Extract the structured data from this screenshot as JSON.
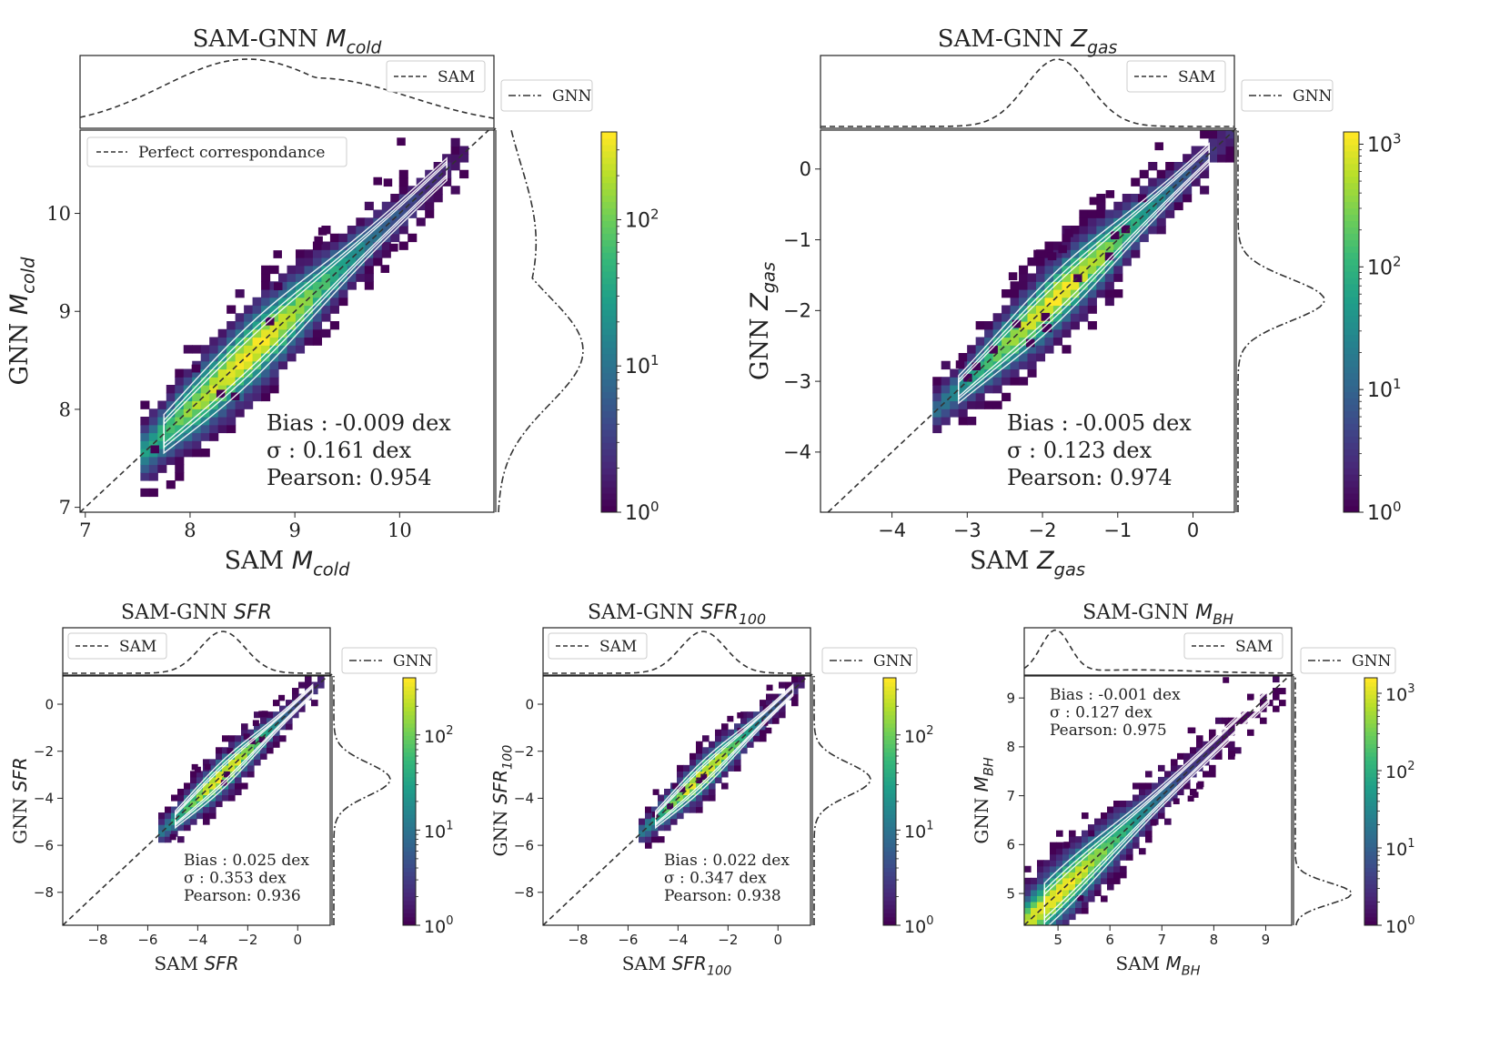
{
  "chart_data": [
    {
      "type": "heatmap",
      "id": "mcold",
      "title": "SAM-GNN M_cold",
      "title_base": "SAM-GNN ",
      "title_sym": "M",
      "title_sub": "cold",
      "xlabel_base": "SAM ",
      "xlabel_sym": "M",
      "xlabel_sub": "cold",
      "ylabel_base": "GNN ",
      "ylabel_sym": "M",
      "ylabel_sub": "cold",
      "xlim": [
        6.95,
        10.9
      ],
      "ylim": [
        6.95,
        10.85
      ],
      "xticks": [
        7,
        8,
        9,
        10
      ],
      "yticks": [
        7,
        8,
        9,
        10
      ],
      "diag_legend": "Perfect correspondance",
      "top_legend": "SAM",
      "right_legend": "GNN",
      "colorbar_ticks": [
        "10^0",
        "10^1",
        "10^2"
      ],
      "colorbar_max_decades": 2.6,
      "stats": [
        "Bias : -0.009 dex",
        "σ : 0.161 dex",
        "Pearson:  0.954"
      ],
      "ridge": {
        "x0": 7.6,
        "x1": 10.6
      },
      "marginal_peak": 8.55,
      "marginal_peak_right": 8.6
    },
    {
      "type": "heatmap",
      "id": "zgas",
      "title": "SAM-GNN Z_gas",
      "title_base": "SAM-GNN ",
      "title_sym": "Z",
      "title_sub": "gas",
      "xlabel_base": "SAM ",
      "xlabel_sym": "Z",
      "xlabel_sub": "gas",
      "ylabel_base": "GNN ",
      "ylabel_sym": "Z",
      "ylabel_sub": "gas",
      "xlim": [
        -4.95,
        0.55
      ],
      "ylim": [
        -4.85,
        0.55
      ],
      "xticks": [
        -4,
        -3,
        -2,
        -1,
        0
      ],
      "yticks": [
        -4,
        -3,
        -2,
        -1,
        0
      ],
      "diag_legend": "",
      "top_legend": "SAM",
      "right_legend": "GNN",
      "colorbar_ticks": [
        "10^0",
        "10^1",
        "10^2",
        "10^3"
      ],
      "colorbar_max_decades": 3.1,
      "stats": [
        "Bias : -0.005 dex",
        "σ : 0.123 dex",
        "Pearson:  0.974"
      ],
      "ridge": {
        "x0": -3.3,
        "x1": 0.4
      },
      "marginal_peak": -1.8,
      "marginal_peak_right": -1.85
    },
    {
      "type": "heatmap",
      "id": "sfr",
      "title": "SAM-GNN SFR",
      "title_base": "SAM-GNN ",
      "title_sym": "SFR",
      "title_sub": "",
      "xlabel_base": "SAM ",
      "xlabel_sym": "SFR",
      "xlabel_sub": "",
      "ylabel_base": "GNN ",
      "ylabel_sym": "SFR",
      "ylabel_sub": "",
      "xlim": [
        -9.4,
        1.3
      ],
      "ylim": [
        -9.4,
        1.2
      ],
      "xticks": [
        -8,
        -6,
        -4,
        -2,
        0
      ],
      "yticks": [
        -8,
        -6,
        -4,
        -2,
        0
      ],
      "diag_legend": "",
      "top_legend": "SAM",
      "right_legend": "GNN",
      "colorbar_ticks": [
        "10^0",
        "10^1",
        "10^2"
      ],
      "colorbar_max_decades": 2.6,
      "stats": [
        "Bias : 0.025 dex",
        "σ : 0.353 dex",
        "Pearson:  0.936"
      ],
      "ridge": {
        "x0": -5.2,
        "x1": 0.9
      },
      "marginal_peak": -3.0,
      "marginal_peak_right": -3.2
    },
    {
      "type": "heatmap",
      "id": "sfr100",
      "title": "SAM-GNN SFR_100",
      "title_base": "SAM-GNN ",
      "title_sym": "SFR",
      "title_sub": "100",
      "xlabel_base": "SAM ",
      "xlabel_sym": "SFR",
      "xlabel_sub": "100",
      "ylabel_base": "GNN ",
      "ylabel_sym": "SFR",
      "ylabel_sub": "100",
      "xlim": [
        -9.4,
        1.3
      ],
      "ylim": [
        -9.4,
        1.2
      ],
      "xticks": [
        -8,
        -6,
        -4,
        -2,
        0
      ],
      "yticks": [
        -8,
        -6,
        -4,
        -2,
        0
      ],
      "diag_legend": "",
      "top_legend": "SAM",
      "right_legend": "GNN",
      "colorbar_ticks": [
        "10^0",
        "10^1",
        "10^2"
      ],
      "colorbar_max_decades": 2.6,
      "stats": [
        "Bias : 0.022 dex",
        "σ : 0.347 dex",
        "Pearson:  0.938"
      ],
      "ridge": {
        "x0": -5.2,
        "x1": 0.9
      },
      "marginal_peak": -3.0,
      "marginal_peak_right": -3.2
    },
    {
      "type": "heatmap",
      "id": "mbh",
      "title": "SAM-GNN M_BH",
      "title_base": "SAM-GNN ",
      "title_sym": "M",
      "title_sub": "BH",
      "xlabel_base": "SAM ",
      "xlabel_sym": "M",
      "xlabel_sub": "BH",
      "ylabel_base": "GNN ",
      "ylabel_sym": "M",
      "ylabel_sub": "BH",
      "xlim": [
        4.35,
        9.5
      ],
      "ylim": [
        4.35,
        9.45
      ],
      "xticks": [
        5,
        6,
        7,
        8,
        9
      ],
      "yticks": [
        5,
        6,
        7,
        8,
        9
      ],
      "diag_legend": "",
      "top_legend": "SAM",
      "right_legend": "GNN",
      "colorbar_ticks": [
        "10^0",
        "10^1",
        "10^2",
        "10^3"
      ],
      "colorbar_max_decades": 3.2,
      "stats": [
        "Bias : -0.001 dex",
        "σ : 0.127 dex",
        "Pearson:  0.975"
      ],
      "ridge": {
        "x0": 4.5,
        "x1": 9.3
      },
      "marginal_peak": 4.95,
      "marginal_peak_right": 5.0
    }
  ],
  "colors": {
    "viridis": [
      "#440154",
      "#482878",
      "#3e4989",
      "#31688e",
      "#26828e",
      "#1f9e89",
      "#35b779",
      "#6ece58",
      "#b5de2b",
      "#fde725"
    ],
    "diagonal": "#333333",
    "contour": "#ffffff"
  }
}
